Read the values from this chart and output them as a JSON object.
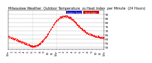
{
  "title": "Milwaukee Weather  Outdoor Temperature  vs Heat Index  per Minute  (24 Hours)",
  "background_color": "#ffffff",
  "plot_bg_color": "#ffffff",
  "grid_color": "#aaaaaa",
  "dot_color": "#ff0000",
  "legend_colors": [
    "#0000cc",
    "#cc0000"
  ],
  "legend_labels": [
    "Outdoor Temp",
    "Heat Index"
  ],
  "xlim": [
    0,
    1440
  ],
  "ylim": [
    47,
    95
  ],
  "yticks": [
    50,
    55,
    60,
    65,
    70,
    75,
    80,
    85,
    90
  ],
  "vlines": [
    360,
    720
  ],
  "temp_curve": [
    [
      0,
      63
    ],
    [
      30,
      62
    ],
    [
      60,
      61
    ],
    [
      90,
      60
    ],
    [
      120,
      59
    ],
    [
      150,
      58
    ],
    [
      180,
      57
    ],
    [
      210,
      56
    ],
    [
      240,
      55
    ],
    [
      270,
      54
    ],
    [
      300,
      53
    ],
    [
      330,
      52
    ],
    [
      360,
      51
    ],
    [
      390,
      51
    ],
    [
      420,
      52
    ],
    [
      450,
      53
    ],
    [
      480,
      55
    ],
    [
      510,
      57
    ],
    [
      540,
      60
    ],
    [
      570,
      63
    ],
    [
      600,
      67
    ],
    [
      630,
      71
    ],
    [
      660,
      75
    ],
    [
      690,
      79
    ],
    [
      720,
      82
    ],
    [
      750,
      84
    ],
    [
      780,
      86
    ],
    [
      810,
      87
    ],
    [
      840,
      88
    ],
    [
      870,
      88
    ],
    [
      900,
      87
    ],
    [
      930,
      86
    ],
    [
      960,
      84
    ],
    [
      990,
      82
    ],
    [
      1020,
      79
    ],
    [
      1050,
      76
    ],
    [
      1080,
      74
    ],
    [
      1110,
      72
    ],
    [
      1140,
      70
    ],
    [
      1170,
      68
    ],
    [
      1200,
      67
    ],
    [
      1230,
      66
    ],
    [
      1260,
      65
    ],
    [
      1290,
      64
    ],
    [
      1320,
      63
    ],
    [
      1350,
      63
    ],
    [
      1380,
      62
    ],
    [
      1410,
      62
    ],
    [
      1440,
      61
    ]
  ],
  "xtick_labels": [
    "12a",
    "1",
    "2",
    "3",
    "4",
    "5",
    "6",
    "7",
    "8",
    "9",
    "10",
    "11",
    "12p",
    "1",
    "2",
    "3",
    "4",
    "5",
    "6",
    "7",
    "8",
    "9",
    "10",
    "11",
    "12a"
  ],
  "xtick_positions": [
    0,
    60,
    120,
    180,
    240,
    300,
    360,
    420,
    480,
    540,
    600,
    660,
    720,
    780,
    840,
    900,
    960,
    1020,
    1080,
    1140,
    1200,
    1260,
    1320,
    1380,
    1440
  ],
  "title_fontsize": 3.5,
  "tick_fontsize": 3.0,
  "dot_size": 0.4,
  "dot_alpha": 1.0,
  "legend_bar_width": 0.09,
  "legend_bar_height": 0.05
}
